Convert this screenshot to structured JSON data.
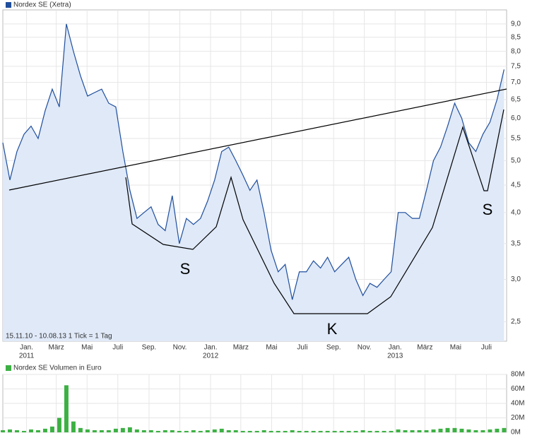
{
  "chart_data": [
    {
      "type": "line",
      "legend": "Nordex SE (Xetra)",
      "color": "#1f4e9c",
      "fill": "#dfe9f8",
      "log_scale": true,
      "grid": true,
      "footnote": "15.11.10 - 10.08.13   1 Tick = 1 Tag",
      "values": [
        5.4,
        4.6,
        5.2,
        5.6,
        5.8,
        5.5,
        6.2,
        6.8,
        6.3,
        9.0,
        8.0,
        7.2,
        6.6,
        6.7,
        6.8,
        6.4,
        6.3,
        5.2,
        4.4,
        3.9,
        4.0,
        4.1,
        3.8,
        3.7,
        4.3,
        3.5,
        3.9,
        3.8,
        3.9,
        4.2,
        4.6,
        5.2,
        5.3,
        5.0,
        4.7,
        4.4,
        4.6,
        4.0,
        3.4,
        3.1,
        3.2,
        2.75,
        3.1,
        3.1,
        3.25,
        3.15,
        3.3,
        3.1,
        3.2,
        3.3,
        3.0,
        2.8,
        2.95,
        2.9,
        3.0,
        3.1,
        4.0,
        4.0,
        3.9,
        3.9,
        4.4,
        5.0,
        5.3,
        5.8,
        6.4,
        6.0,
        5.4,
        5.2,
        5.6,
        5.9,
        6.5,
        7.4
      ],
      "xlim": [
        0,
        71.36
      ],
      "xticks": [
        {
          "value": 3.36,
          "label": "Jan."
        },
        {
          "value": 7.57,
          "label": "März"
        },
        {
          "value": 11.93,
          "label": "Mai"
        },
        {
          "value": 16.29,
          "label": "Juli"
        },
        {
          "value": 20.71,
          "label": "Sep."
        },
        {
          "value": 25.07,
          "label": "Nov."
        },
        {
          "value": 29.43,
          "label": "Jan."
        },
        {
          "value": 33.71,
          "label": "März"
        },
        {
          "value": 38.07,
          "label": "Mai"
        },
        {
          "value": 42.43,
          "label": "Juli"
        },
        {
          "value": 46.86,
          "label": "Sep."
        },
        {
          "value": 51.21,
          "label": "Nov."
        },
        {
          "value": 55.57,
          "label": "Jan."
        },
        {
          "value": 59.79,
          "label": "März"
        },
        {
          "value": 64.14,
          "label": "Mai"
        },
        {
          "value": 68.5,
          "label": "Juli"
        }
      ],
      "xtick_years": [
        {
          "value": 3.36,
          "label": "2011"
        },
        {
          "value": 29.43,
          "label": "2012"
        },
        {
          "value": 55.57,
          "label": "2013"
        }
      ],
      "ylim": [
        2.3,
        9.56
      ],
      "yticks": [
        {
          "value": 2.5,
          "label": "2,5"
        },
        {
          "value": 3,
          "label": "3,0"
        },
        {
          "value": 3.5,
          "label": "3,5"
        },
        {
          "value": 4,
          "label": "4,0"
        },
        {
          "value": 4.5,
          "label": "4,5"
        },
        {
          "value": 5,
          "label": "5,0"
        },
        {
          "value": 5.5,
          "label": "5,5"
        },
        {
          "value": 6,
          "label": "6,0"
        },
        {
          "value": 6.5,
          "label": "6,5"
        },
        {
          "value": 7,
          "label": "7,0"
        },
        {
          "value": 7.5,
          "label": "7,5"
        },
        {
          "value": 8,
          "label": "8,0"
        },
        {
          "value": 8.5,
          "label": "8,5"
        },
        {
          "value": 9,
          "label": "9,0"
        }
      ],
      "annotations": [
        "S",
        "K",
        "S"
      ]
    },
    {
      "type": "bar",
      "legend": "Nordex SE Volumen in Euro",
      "color": "#3cb043",
      "grid": true,
      "values": [
        3,
        4,
        3,
        2,
        4,
        3,
        5,
        8,
        20,
        65,
        15,
        6,
        4,
        3,
        3,
        3,
        5,
        6,
        7,
        4,
        3,
        3,
        2,
        3,
        3,
        2,
        2,
        3,
        2,
        3,
        4,
        5,
        3,
        3,
        2,
        2,
        2,
        3,
        2,
        2,
        2,
        3,
        2,
        2,
        2,
        2,
        2,
        2,
        2,
        2,
        2,
        3,
        2,
        2,
        2,
        2,
        4,
        3,
        3,
        3,
        3,
        4,
        5,
        6,
        6,
        5,
        4,
        3,
        3,
        4,
        5,
        6
      ],
      "xlim": [
        0,
        71.36
      ],
      "ylim": [
        0,
        80
      ],
      "yticks": [
        {
          "value": 0,
          "label": "0M"
        },
        {
          "value": 20,
          "label": "20M"
        },
        {
          "value": 40,
          "label": "40M"
        },
        {
          "value": 60,
          "label": "60M"
        },
        {
          "value": 80,
          "label": "80M"
        }
      ]
    }
  ]
}
